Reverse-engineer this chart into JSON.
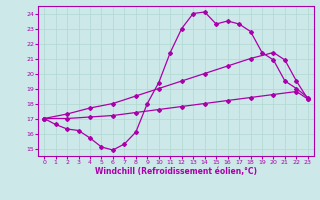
{
  "xlabel": "Windchill (Refroidissement éolien,°C)",
  "xlim": [
    -0.5,
    23.5
  ],
  "ylim": [
    14.5,
    24.5
  ],
  "yticks": [
    15,
    16,
    17,
    18,
    19,
    20,
    21,
    22,
    23,
    24
  ],
  "xticks": [
    0,
    1,
    2,
    3,
    4,
    5,
    6,
    7,
    8,
    9,
    10,
    11,
    12,
    13,
    14,
    15,
    16,
    17,
    18,
    19,
    20,
    21,
    22,
    23
  ],
  "bg_color": "#cde8e8",
  "line_color": "#aa00aa",
  "grid_color": "#b0d8d0",
  "s1_x": [
    0,
    1,
    2,
    3,
    4,
    5,
    6,
    7,
    8,
    9,
    10,
    11,
    12,
    13,
    14,
    15,
    16,
    17,
    18,
    19,
    20,
    21,
    22,
    23
  ],
  "s1_y": [
    17.0,
    16.6,
    16.3,
    16.2,
    15.7,
    15.1,
    14.9,
    15.3,
    16.1,
    18.0,
    19.4,
    21.4,
    23.0,
    24.0,
    24.1,
    23.3,
    23.5,
    23.3,
    22.8,
    21.4,
    20.9,
    19.5,
    19.0,
    18.4
  ],
  "s2_x": [
    0,
    2,
    4,
    6,
    8,
    10,
    12,
    14,
    16,
    18,
    20,
    22,
    23
  ],
  "s2_y": [
    17.0,
    17.0,
    17.1,
    17.2,
    17.4,
    17.6,
    17.8,
    18.0,
    18.2,
    18.4,
    18.6,
    18.8,
    18.3
  ],
  "s3_x": [
    0,
    2,
    4,
    6,
    8,
    10,
    12,
    14,
    16,
    18,
    20,
    21,
    22,
    23
  ],
  "s3_y": [
    17.0,
    17.3,
    17.7,
    18.0,
    18.5,
    19.0,
    19.5,
    20.0,
    20.5,
    21.0,
    21.4,
    20.9,
    19.5,
    18.3
  ],
  "marker": "D",
  "markersize": 2.0,
  "linewidth": 0.9
}
